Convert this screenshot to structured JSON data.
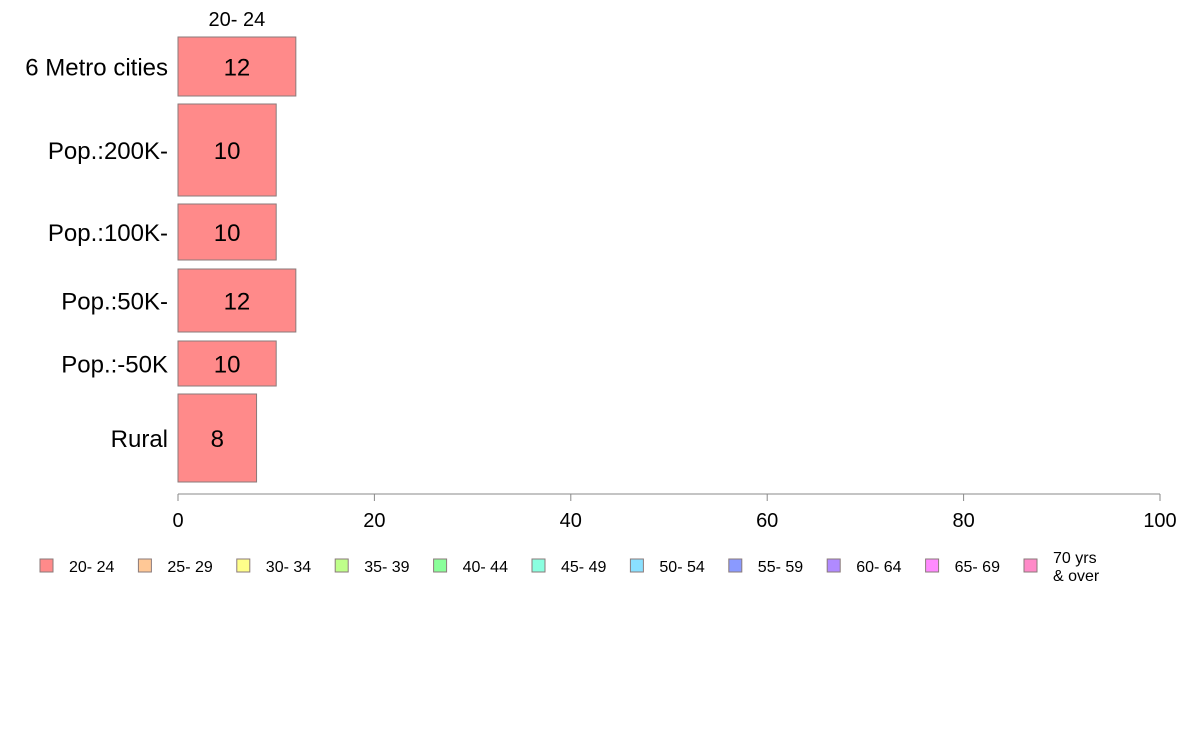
{
  "chart_data": {
    "type": "bar",
    "orientation": "horizontal",
    "stacked": true,
    "categories": [
      "6 Metro cities",
      "Pop.:200K-",
      "Pop.:100K-",
      "Pop.:50K-",
      "Pop.:-50K",
      "Rural"
    ],
    "series": [
      {
        "name": "20- 24",
        "values": [
          12,
          10,
          10,
          12,
          10,
          8
        ],
        "color": "#ff8a8a"
      },
      {
        "name": "25- 29",
        "values": [
          0,
          0,
          0,
          0,
          0,
          0
        ],
        "color": "#ffc896"
      },
      {
        "name": "30- 34",
        "values": [
          0,
          0,
          0,
          0,
          0,
          0
        ],
        "color": "#ffff8a"
      },
      {
        "name": "35- 39",
        "values": [
          0,
          0,
          0,
          0,
          0,
          0
        ],
        "color": "#bfff8a"
      },
      {
        "name": "40- 44",
        "values": [
          0,
          0,
          0,
          0,
          0,
          0
        ],
        "color": "#8aff9a"
      },
      {
        "name": "45- 49",
        "values": [
          0,
          0,
          0,
          0,
          0,
          0
        ],
        "color": "#8affe0"
      },
      {
        "name": "50- 54",
        "values": [
          0,
          0,
          0,
          0,
          0,
          0
        ],
        "color": "#8ae0ff"
      },
      {
        "name": "55- 59",
        "values": [
          0,
          0,
          0,
          0,
          0,
          0
        ],
        "color": "#8a9aff"
      },
      {
        "name": "60- 64",
        "values": [
          0,
          0,
          0,
          0,
          0,
          0
        ],
        "color": "#b08aff"
      },
      {
        "name": "65- 69",
        "values": [
          0,
          0,
          0,
          0,
          0,
          0
        ],
        "color": "#ff8aff"
      },
      {
        "name": "70 yrs\n& over",
        "values": [
          0,
          0,
          0,
          0,
          0,
          0
        ],
        "color": "#ff8ac8"
      }
    ],
    "series_header": "20- 24",
    "xlim": [
      0,
      100
    ],
    "xticks": [
      0,
      20,
      40,
      60,
      80,
      100
    ],
    "title": "",
    "xlabel": "",
    "ylabel": "",
    "grid": false,
    "legend_position": "bottom"
  }
}
